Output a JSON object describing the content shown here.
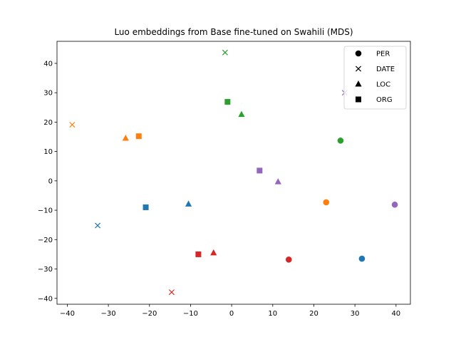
{
  "chart_data": {
    "type": "scatter",
    "title": "Luo embeddings from Base fine-tuned on Swahili (MDS)",
    "xlabel": "",
    "ylabel": "",
    "xlim": [
      -42.5,
      43.5
    ],
    "ylim": [
      -42,
      47.5
    ],
    "xticks": [
      -40,
      -30,
      -20,
      -10,
      0,
      10,
      20,
      30,
      40
    ],
    "yticks": [
      -40,
      -30,
      -20,
      -10,
      0,
      10,
      20,
      30,
      40
    ],
    "grid": false,
    "legend": {
      "placement": "top-right",
      "entries": [
        {
          "label": "PER",
          "marker": "circle"
        },
        {
          "label": "DATE",
          "marker": "x"
        },
        {
          "label": "LOC",
          "marker": "triangle"
        },
        {
          "label": "ORG",
          "marker": "square"
        }
      ]
    },
    "colors": {
      "blue": "#1f77b4",
      "orange": "#ff7f0e",
      "green": "#2ca02c",
      "red": "#d62728",
      "purple": "#9467bd"
    },
    "points": [
      {
        "x": 31.7,
        "y": -26.5,
        "marker": "circle",
        "color": "blue"
      },
      {
        "x": 23.0,
        "y": -7.3,
        "marker": "circle",
        "color": "orange"
      },
      {
        "x": 26.5,
        "y": 13.7,
        "marker": "circle",
        "color": "green"
      },
      {
        "x": 13.9,
        "y": -26.8,
        "marker": "circle",
        "color": "red"
      },
      {
        "x": 39.7,
        "y": -8.1,
        "marker": "circle",
        "color": "purple"
      },
      {
        "x": -32.6,
        "y": -15.2,
        "marker": "x",
        "color": "blue"
      },
      {
        "x": -38.8,
        "y": 19.1,
        "marker": "x",
        "color": "orange"
      },
      {
        "x": -1.6,
        "y": 43.7,
        "marker": "x",
        "color": "green"
      },
      {
        "x": -14.6,
        "y": -37.9,
        "marker": "x",
        "color": "red"
      },
      {
        "x": 27.5,
        "y": 30.0,
        "marker": "x",
        "color": "purple"
      },
      {
        "x": -10.5,
        "y": -7.9,
        "marker": "triangle",
        "color": "blue"
      },
      {
        "x": -25.8,
        "y": 14.5,
        "marker": "triangle",
        "color": "orange"
      },
      {
        "x": 2.4,
        "y": 22.6,
        "marker": "triangle",
        "color": "green"
      },
      {
        "x": -4.4,
        "y": -24.5,
        "marker": "triangle",
        "color": "red"
      },
      {
        "x": 11.3,
        "y": -0.3,
        "marker": "triangle",
        "color": "purple"
      },
      {
        "x": -20.9,
        "y": -9.0,
        "marker": "square",
        "color": "blue"
      },
      {
        "x": -22.6,
        "y": 15.2,
        "marker": "square",
        "color": "orange"
      },
      {
        "x": -1.0,
        "y": 26.9,
        "marker": "square",
        "color": "green"
      },
      {
        "x": -8.1,
        "y": -25.0,
        "marker": "square",
        "color": "red"
      },
      {
        "x": 6.8,
        "y": 3.5,
        "marker": "square",
        "color": "purple"
      }
    ]
  }
}
